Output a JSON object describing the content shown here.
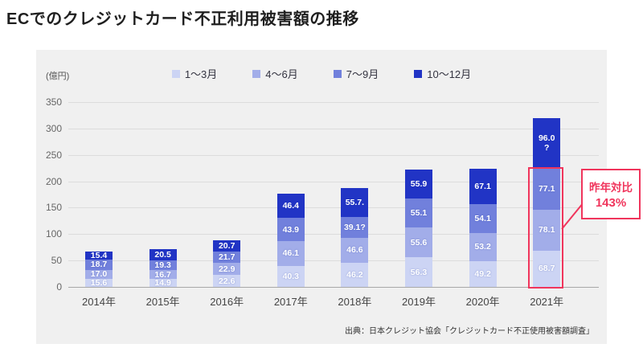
{
  "page": {
    "title": "ECでのクレジットカード不正利用被害額の推移",
    "source": "出典：日本クレジット協会「クレジットカード不正使用被害額調査」"
  },
  "annotation": {
    "line1": "昨年対比",
    "line2": "143%"
  },
  "colors": {
    "q1": "#ccd4f4",
    "q2": "#a2ade9",
    "q3": "#7180dc",
    "q4": "#2134c5",
    "red_accent": "#f0355c",
    "panel_bg": "#f0f0f0"
  },
  "chart_data": {
    "type": "bar",
    "subtype": "stacked-column",
    "title": "ECでのクレジットカード不正利用被害額の推移",
    "unit_label": "(億円)",
    "categories": [
      "2014年",
      "2015年",
      "2016年",
      "2017年",
      "2018年",
      "2019年",
      "2020年",
      "2021年"
    ],
    "series": [
      {
        "name": "1〜3月",
        "color": "#ccd4f4",
        "values": [
          15.6,
          14.9,
          22.6,
          40.3,
          46.2,
          56.3,
          49.2,
          68.7
        ],
        "labels": [
          "15.6",
          "14.9",
          "22.6",
          "40.3",
          "46.2",
          "56.3",
          "49.2",
          "68.7"
        ]
      },
      {
        "name": "4〜6月",
        "color": "#a2ade9",
        "values": [
          17.0,
          16.7,
          22.9,
          46.1,
          46.6,
          55.6,
          53.2,
          78.1
        ],
        "labels": [
          "17.0",
          "16.7",
          "22.9",
          "46.1",
          "46.6",
          "55.6",
          "53.2",
          "78.1"
        ]
      },
      {
        "name": "7〜9月",
        "color": "#7180dc",
        "values": [
          18.7,
          19.3,
          21.7,
          43.9,
          39.1,
          55.1,
          54.1,
          77.1
        ],
        "labels": [
          "18.7",
          "19.3",
          "21.7",
          "43.9",
          "39.1?",
          "55.1",
          "54.1",
          "77.1"
        ]
      },
      {
        "name": "10〜12月",
        "color": "#2134c5",
        "values": [
          15.4,
          20.5,
          20.7,
          46.4,
          55.7,
          55.9,
          67.1,
          96.0
        ],
        "labels": [
          "15.4",
          "20.5",
          "20.7",
          "46.4",
          "55.7.",
          "55.9",
          "67.1",
          "96.0\n?"
        ]
      }
    ],
    "y_ticks": [
      0,
      50,
      100,
      150,
      200,
      250,
      300,
      350
    ],
    "ylim": [
      0,
      350
    ],
    "grid": true,
    "legend_position": "top",
    "annotation": {
      "text": "昨年対比 143%",
      "target": "2021年 1〜3月+4〜6月+7〜9月",
      "style": "red box around bottom three 2021 segments with callout"
    }
  }
}
